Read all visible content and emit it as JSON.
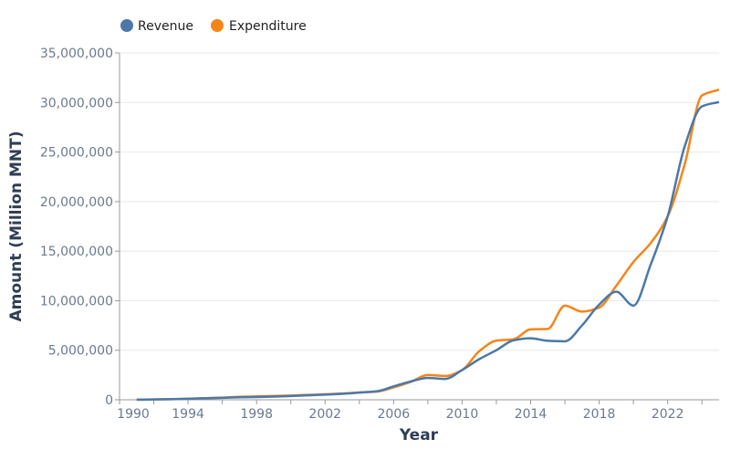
{
  "chart_data": {
    "type": "line",
    "xlabel": "Year",
    "ylabel": "Amount (Million MNT)",
    "xlim": [
      1990,
      2025
    ],
    "ylim": [
      0,
      35000000
    ],
    "x_ticks": [
      "1990",
      "1994",
      "1998",
      "2002",
      "2006",
      "2010",
      "2014",
      "2018",
      "2022"
    ],
    "y_ticks": [
      "0",
      "5,000,000",
      "10,000,000",
      "15,000,000",
      "20,000,000",
      "25,000,000",
      "30,000,000",
      "35,000,000"
    ],
    "grid": true,
    "legend_position": "top-left",
    "x": [
      1991,
      1992,
      1993,
      1994,
      1995,
      1996,
      1997,
      1998,
      1999,
      2000,
      2001,
      2002,
      2003,
      2004,
      2005,
      2006,
      2007,
      2008,
      2009,
      2010,
      2011,
      2012,
      2013,
      2014,
      2015,
      2016,
      2017,
      2018,
      2019,
      2020,
      2021,
      2022,
      2023,
      2024,
      2025
    ],
    "series": [
      {
        "name": "Revenue",
        "color": "#4c78a8",
        "values": [
          10000,
          30000,
          60000,
          100000,
          150000,
          200000,
          250000,
          280000,
          320000,
          380000,
          450000,
          520000,
          600000,
          720000,
          850000,
          1350000,
          1850000,
          2200000,
          2100000,
          3000000,
          4100000,
          5000000,
          6000000,
          6200000,
          5950000,
          5900000,
          7500000,
          9600000,
          10900000,
          9500000,
          13600000,
          18500000,
          25600000,
          29600000,
          30050000
        ]
      },
      {
        "name": "Expenditure",
        "color": "#f58518",
        "values": [
          10000,
          30000,
          60000,
          100000,
          160000,
          220000,
          300000,
          340000,
          380000,
          430000,
          490000,
          550000,
          630000,
          740000,
          820000,
          1250000,
          1800000,
          2500000,
          2400000,
          3000000,
          4900000,
          5960000,
          6100000,
          7100000,
          7150000,
          9500000,
          8900000,
          9300000,
          11500000,
          13900000,
          15800000,
          18500000,
          23800000,
          30700000,
          31300000
        ]
      }
    ]
  }
}
